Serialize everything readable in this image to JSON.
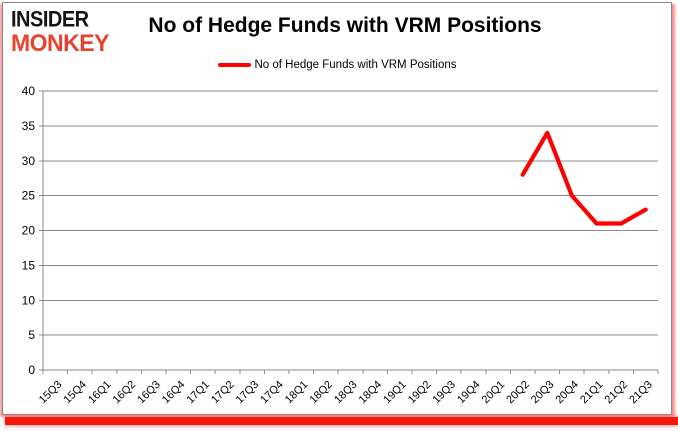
{
  "logo": {
    "line1": "INSIDER",
    "line2": "MONKEY"
  },
  "chart_data": {
    "type": "line",
    "title": "No of Hedge Funds with VRM Positions",
    "legend_label": "No of Hedge Funds with VRM Positions",
    "legend_position": "top",
    "grid": "horizontal",
    "xlabel": "",
    "ylabel": "",
    "ylim": [
      0,
      40
    ],
    "ytick_step": 5,
    "yticks": [
      0,
      5,
      10,
      15,
      20,
      25,
      30,
      35,
      40
    ],
    "categories": [
      "15Q3",
      "15Q4",
      "16Q1",
      "16Q2",
      "16Q3",
      "16Q4",
      "17Q1",
      "17Q2",
      "17Q3",
      "17Q4",
      "18Q1",
      "18Q2",
      "18Q3",
      "18Q4",
      "19Q1",
      "19Q2",
      "19Q3",
      "19Q4",
      "20Q1",
      "20Q2",
      "20Q3",
      "20Q4",
      "21Q1",
      "21Q2",
      "21Q3"
    ],
    "series": [
      {
        "name": "No of Hedge Funds with VRM Positions",
        "color": "#fe0000",
        "values": [
          null,
          null,
          null,
          null,
          null,
          null,
          null,
          null,
          null,
          null,
          null,
          null,
          null,
          null,
          null,
          null,
          null,
          null,
          null,
          28,
          34,
          25,
          21,
          21,
          23
        ]
      }
    ]
  },
  "colors": {
    "series_red": "#fe0000",
    "logo_black": "#151515",
    "logo_red": "#e8432f",
    "grid": "#8a8a8a",
    "axis": "#8a8a8a",
    "text": "#000000",
    "bottom_bar": "#f5170a",
    "card_border": "#8a8a8a"
  }
}
